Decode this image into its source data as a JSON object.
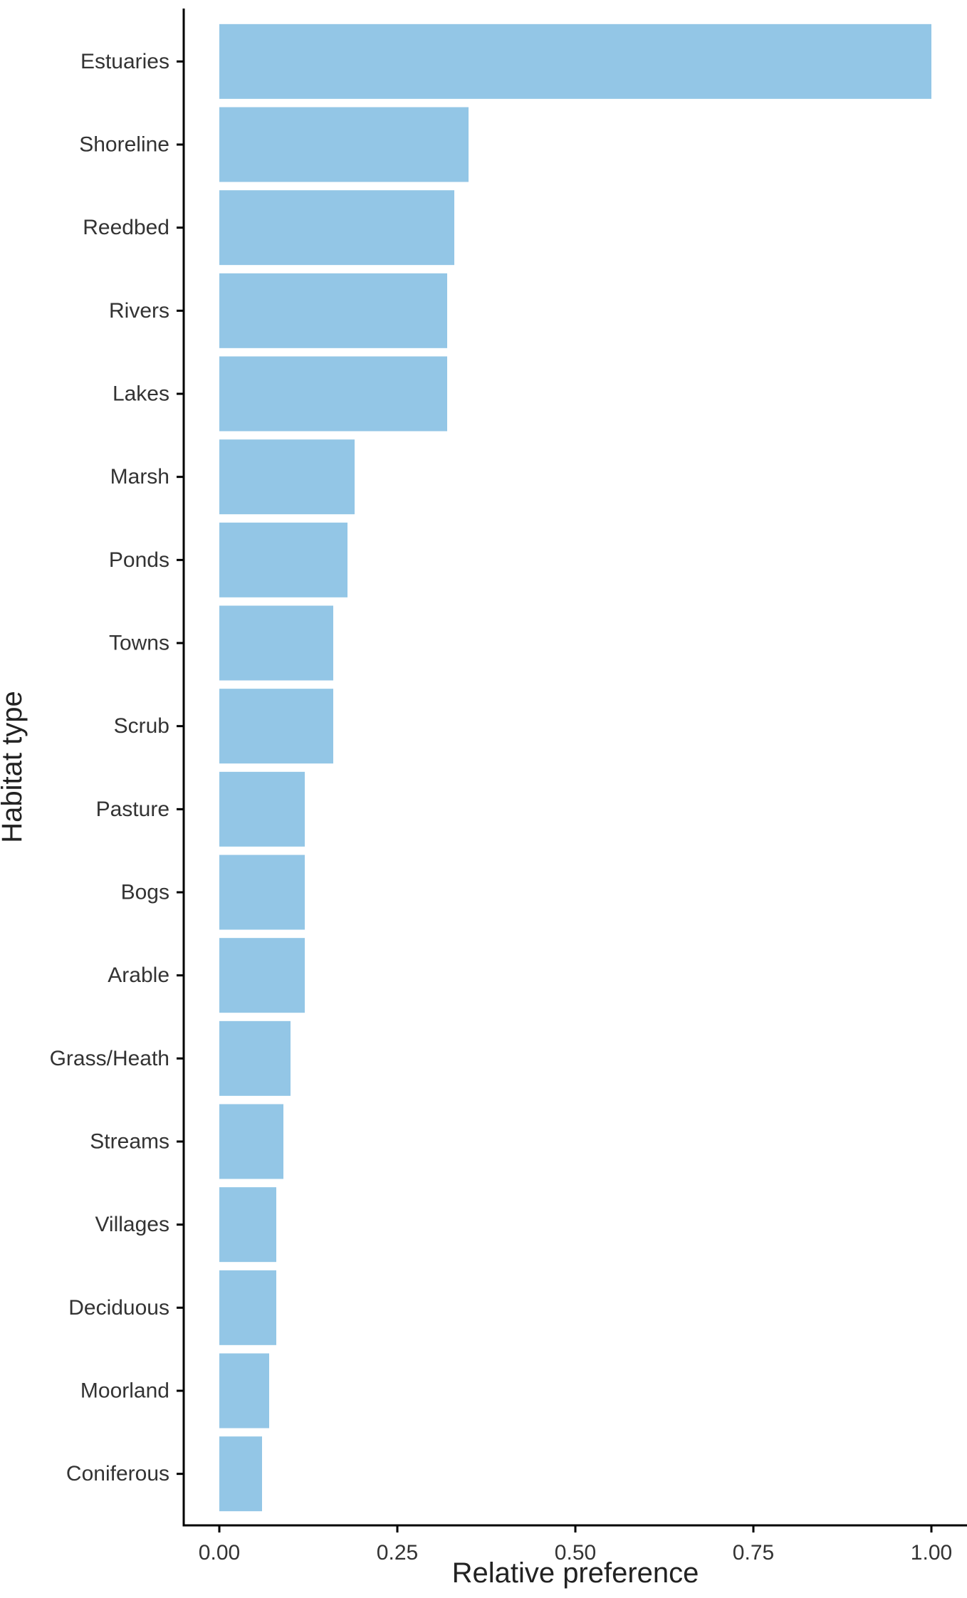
{
  "chart_data": {
    "type": "bar",
    "orientation": "horizontal",
    "title": "",
    "xlabel": "Relative preference",
    "ylabel": "Habitat type",
    "categories": [
      "Estuaries",
      "Shoreline",
      "Reedbed",
      "Rivers",
      "Lakes",
      "Marsh",
      "Ponds",
      "Towns",
      "Scrub",
      "Pasture",
      "Bogs",
      "Arable",
      "Grass/Heath",
      "Streams",
      "Villages",
      "Deciduous",
      "Moorland",
      "Coniferous"
    ],
    "values": [
      1.0,
      0.35,
      0.33,
      0.32,
      0.32,
      0.19,
      0.18,
      0.16,
      0.16,
      0.12,
      0.12,
      0.12,
      0.1,
      0.09,
      0.08,
      0.08,
      0.07,
      0.06
    ],
    "xlim": [
      -0.05,
      1.05
    ],
    "xticks": [
      0,
      0.25,
      0.5,
      0.75,
      1.0
    ],
    "xtick_labels": [
      "0.00",
      "0.25",
      "0.50",
      "0.75",
      "1.00"
    ],
    "bar_color": "#93c6e6",
    "axis_color": "#000000",
    "grid": false,
    "legend": "none"
  }
}
